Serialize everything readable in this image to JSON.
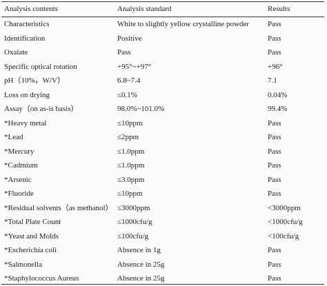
{
  "table": {
    "header": [
      "Analysis contents",
      "Analysis standard",
      "Results"
    ],
    "rows": [
      [
        "Characteristics",
        "White to slightly yellow crystalline powder",
        "Pass"
      ],
      [
        "Identification",
        "Positive",
        "Pass"
      ],
      [
        "Oxalate",
        "Pass",
        "Pass"
      ],
      [
        "Specific optical rotation",
        "+95°~+97°",
        "+96°"
      ],
      [
        "pH（10%，W/V）",
        "6.8~7.4",
        "7.1"
      ],
      [
        "Loss on drying",
        "≤0.1%",
        "0.04%"
      ],
      [
        "Assay（on as-is basis）",
        "98.0%~101.0%",
        "99.4%"
      ],
      [
        "*Heavy metal",
        "≤10ppm",
        "Pass"
      ],
      [
        "*Lead",
        "≤2ppm",
        "Pass"
      ],
      [
        "*Mercury",
        "≤1.0ppm",
        "Pass"
      ],
      [
        "*Cadmium",
        "≤1.0ppm",
        "Pass"
      ],
      [
        "*Arsenic",
        "≤3.0ppm",
        "Pass"
      ],
      [
        "*Fluoride",
        "≤10ppm",
        "Pass"
      ],
      [
        "*Residual solvents（as methanol）",
        "≤3000ppm",
        "<3000ppm"
      ],
      [
        "*Total Plate Count",
        "≤1000cfu/g",
        "<1000cfu/g"
      ],
      [
        "*Yeast and Molds",
        "≤100cfu/g",
        "<100cfu/g"
      ],
      [
        "*Escherichia coli",
        "Absence in 1g",
        "Pass"
      ],
      [
        "*Salmonella",
        "Absence in 25g",
        "Pass"
      ],
      [
        "*Staphylococcus Aureus",
        "Absence in 25g",
        "Pass"
      ]
    ]
  }
}
